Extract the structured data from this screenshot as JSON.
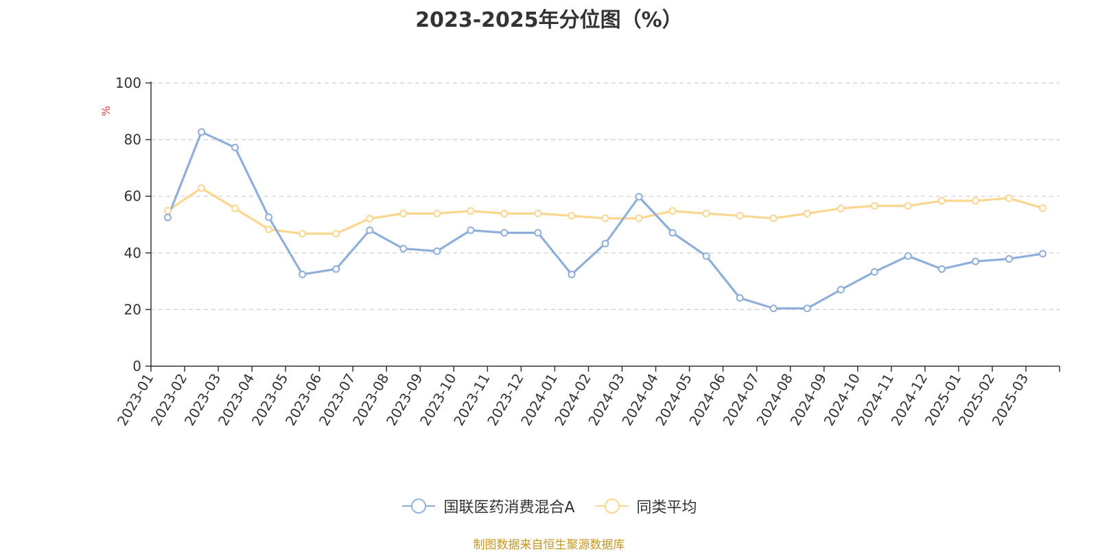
{
  "chart_data": {
    "type": "line",
    "title": "2023-2025年分位图（%）",
    "ylabel": "%",
    "xlabel": "",
    "ylim": [
      0,
      100
    ],
    "yticks": [
      0,
      20,
      40,
      60,
      80,
      100
    ],
    "grid": true,
    "legend_position": "bottom-center",
    "categories": [
      "2023-01",
      "2023-02",
      "2023-03",
      "2023-04",
      "2023-05",
      "2023-06",
      "2023-07",
      "2023-08",
      "2023-09",
      "2023-10",
      "2023-11",
      "2023-12",
      "2024-01",
      "2024-02",
      "2024-03",
      "2024-04",
      "2024-05",
      "2024-06",
      "2024-07",
      "2024-08",
      "2024-09",
      "2024-10",
      "2024-11",
      "2024-12",
      "2025-01",
      "2025-02",
      "2025-03"
    ],
    "series": [
      {
        "name": "国联医药消费混合A",
        "color": "#8eaedb",
        "values": [
          52.5,
          82.7,
          77.2,
          52.6,
          32.4,
          34.3,
          48.0,
          41.5,
          40.6,
          48.0,
          47.1,
          47.1,
          32.4,
          43.3,
          59.8,
          47.1,
          38.9,
          24.1,
          20.4,
          20.4,
          27.0,
          33.3,
          38.9,
          34.3,
          37.0,
          37.9,
          39.7
        ]
      },
      {
        "name": "同类平均",
        "color": "#fcd58e",
        "values": [
          54.9,
          62.9,
          55.7,
          48.3,
          46.8,
          46.8,
          52.1,
          53.9,
          53.9,
          54.8,
          53.9,
          53.9,
          53.1,
          52.2,
          52.2,
          54.8,
          53.9,
          53.1,
          52.2,
          53.9,
          55.7,
          56.6,
          56.6,
          58.4,
          58.4,
          59.3,
          55.8
        ]
      }
    ]
  },
  "source_note": "制图数据来自恒生聚源数据库"
}
